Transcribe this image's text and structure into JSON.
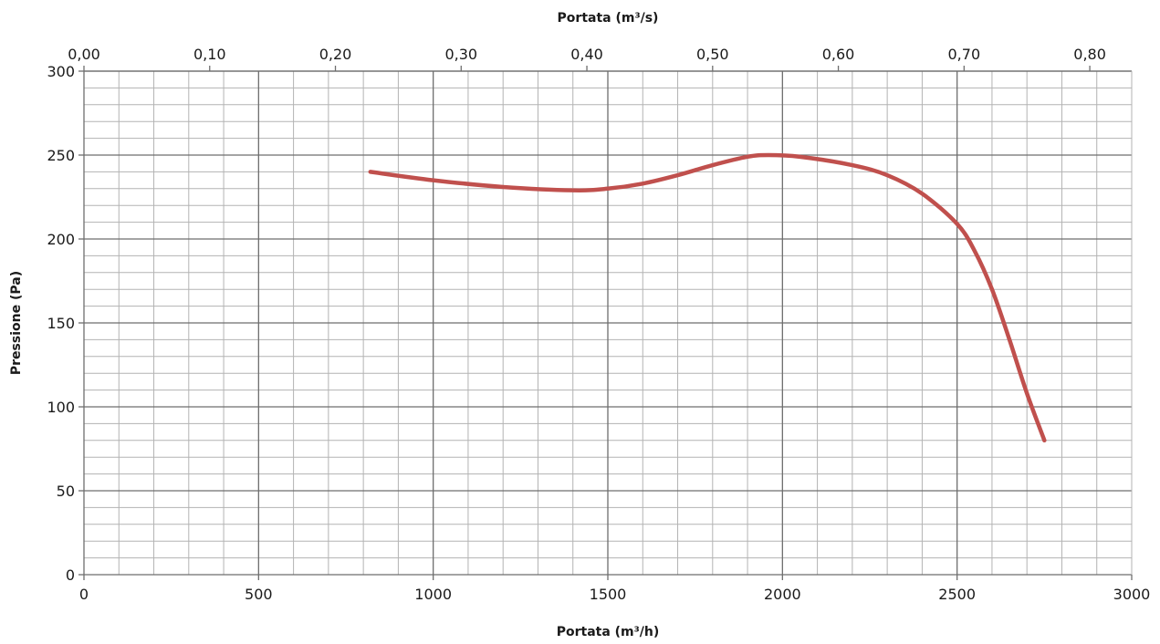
{
  "chart_data": {
    "type": "line",
    "x_axis_title": "Portata (m³/h)",
    "x2_axis_title": "Portata (m³/s)",
    "y_axis_title": "Pressione (Pa)",
    "xlim": [
      0,
      3000
    ],
    "ylim": [
      0,
      300
    ],
    "x_major_ticks": [
      0,
      500,
      1000,
      1500,
      2000,
      2500,
      3000
    ],
    "x_tick_labels": [
      "0",
      "500",
      "1000",
      "1500",
      "2000",
      "2500",
      "3000"
    ],
    "y_major_ticks": [
      0,
      50,
      100,
      150,
      200,
      250,
      300
    ],
    "y_tick_labels": [
      "0",
      "50",
      "100",
      "150",
      "200",
      "250",
      "300"
    ],
    "x2_major_ticks": [
      0.0,
      0.1,
      0.2,
      0.3,
      0.4,
      0.5,
      0.6,
      0.7,
      0.8
    ],
    "x2_tick_labels": [
      "0,00",
      "0,10",
      "0,20",
      "0,30",
      "0,40",
      "0,50",
      "0,60",
      "0,70",
      "0,80"
    ],
    "x2_scale_m3h_per_unit": 3600,
    "x_minor_step": 100,
    "y_minor_step": 10,
    "grid": true,
    "series": [
      {
        "color": "#c0504d",
        "x": [
          820,
          1000,
          1200,
          1400,
          1500,
          1600,
          1700,
          1800,
          1900,
          1960,
          2050,
          2200,
          2300,
          2400,
          2500,
          2550,
          2600,
          2650,
          2700,
          2750
        ],
        "y": [
          240,
          235,
          231,
          229,
          230,
          233,
          238,
          244,
          249,
          250,
          249,
          244,
          238,
          227,
          209,
          193,
          170,
          140,
          108,
          80
        ]
      }
    ]
  }
}
